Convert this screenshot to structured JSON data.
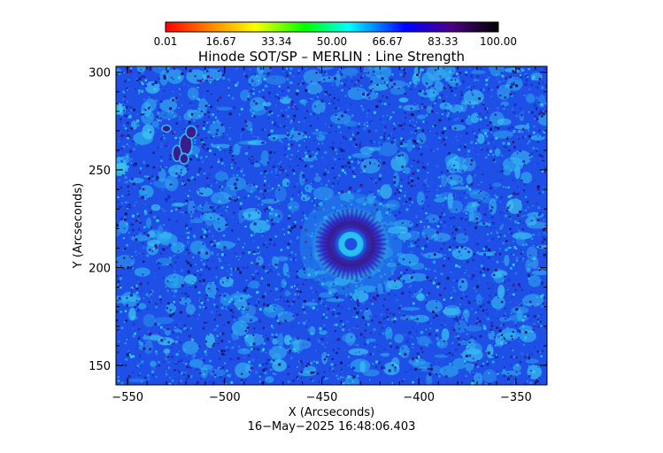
{
  "chart_data": {
    "type": "heatmap",
    "title": "Hinode SOT/SP – MERLIN : Line Strength",
    "xlabel": "X (Arcseconds)",
    "ylabel": "Y (Arcseconds)",
    "xlim": [
      -556,
      -334
    ],
    "ylim": [
      140,
      303
    ],
    "x_ticks": [
      -550,
      -500,
      -450,
      -400,
      -350
    ],
    "x_tick_labels": [
      "−550",
      "−500",
      "−450",
      "−400",
      "−350"
    ],
    "y_ticks": [
      150,
      200,
      250,
      300
    ],
    "y_tick_labels": [
      "150",
      "200",
      "250",
      "300"
    ],
    "colorbar": {
      "range": [
        0.01,
        100.0
      ],
      "tick_labels": [
        "0.01",
        "16.67",
        "33.34",
        "50.00",
        "66.67",
        "83.33",
        "100.00"
      ],
      "colors": [
        "#ff0000",
        "#ff8c00",
        "#ffff00",
        "#00ff00",
        "#00ffff",
        "#0000ff",
        "#4b0082",
        "#000000"
      ]
    },
    "features": [
      {
        "kind": "sunspot",
        "x": -435,
        "y": 212
      },
      {
        "kind": "pore",
        "x": -520,
        "y": 263
      }
    ]
  },
  "timestamp": "16−May−2025  16:48:06.403"
}
